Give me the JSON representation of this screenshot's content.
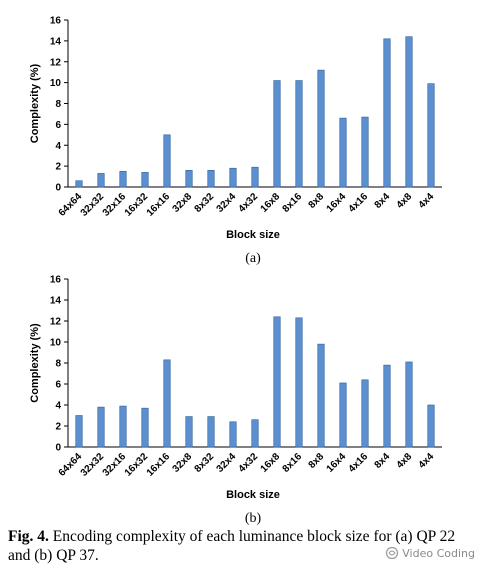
{
  "chart_data": [
    {
      "type": "bar",
      "panel_label": "(a)",
      "categories": [
        "64x64",
        "32x32",
        "32x16",
        "16x32",
        "16x16",
        "32x8",
        "8x32",
        "32x4",
        "4x32",
        "16x8",
        "8x16",
        "8x8",
        "16x4",
        "4x16",
        "8x4",
        "4x8",
        "4x4"
      ],
      "values": [
        0.6,
        1.3,
        1.5,
        1.4,
        5.0,
        1.6,
        1.6,
        1.8,
        1.9,
        10.2,
        10.2,
        11.2,
        6.6,
        6.7,
        14.2,
        14.4,
        9.9
      ],
      "xlabel": "Block size",
      "ylabel": "Complexity (%)",
      "yticks": [
        0,
        2,
        4,
        6,
        8,
        10,
        12,
        14,
        16
      ],
      "ylim": [
        0,
        16
      ],
      "grid": false,
      "bar_color": "#5b8fd0"
    },
    {
      "type": "bar",
      "panel_label": "(b)",
      "categories": [
        "64x64",
        "32x32",
        "32x16",
        "16x32",
        "16x16",
        "32x8",
        "8x32",
        "32x4",
        "4x32",
        "16x8",
        "8x16",
        "8x8",
        "16x4",
        "4x16",
        "8x4",
        "4x8",
        "4x4"
      ],
      "values": [
        3.0,
        3.8,
        3.9,
        3.7,
        8.3,
        2.9,
        2.9,
        2.4,
        2.6,
        12.4,
        12.3,
        9.8,
        6.1,
        6.4,
        7.8,
        8.1,
        4.0
      ],
      "xlabel": "Block size",
      "ylabel": "Complexity (%)",
      "yticks": [
        0,
        2,
        4,
        6,
        8,
        10,
        12,
        14,
        16
      ],
      "ylim": [
        0,
        16
      ],
      "grid": false,
      "bar_color": "#5b8fd0"
    }
  ],
  "caption": {
    "lead": "Fig. 4.",
    "text": " Encoding complexity of each luminance block size for (a) QP 22 and (b) QP 37."
  },
  "watermark": {
    "icon": "wechat-channel-icon",
    "text": "Video Coding"
  }
}
